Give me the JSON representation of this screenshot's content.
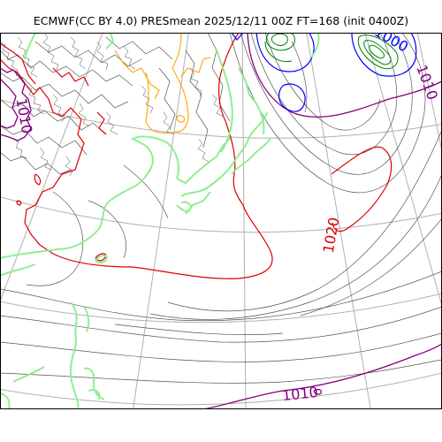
{
  "title": "ECMWF(CC BY 4.0) PRESmean 2025/12/11 00Z FT=168 (init 0400Z)",
  "contour_labels": {
    "label_1020": "1020",
    "label_1010_bottom": "1010",
    "label_1010_right": "1010",
    "label_1010_left": "1010",
    "label_1000_top": "1000"
  },
  "colors": {
    "isobar": "#555555",
    "isobar_1020": "#e00000",
    "isobar_1010": "#800080",
    "isobar_1000": "#0000ff",
    "isobar_low": "#008000",
    "isobar_1030": "#ffa500",
    "coastline": "#90ee90",
    "graticule": "#b0b0b0",
    "frame": "#000000"
  }
}
